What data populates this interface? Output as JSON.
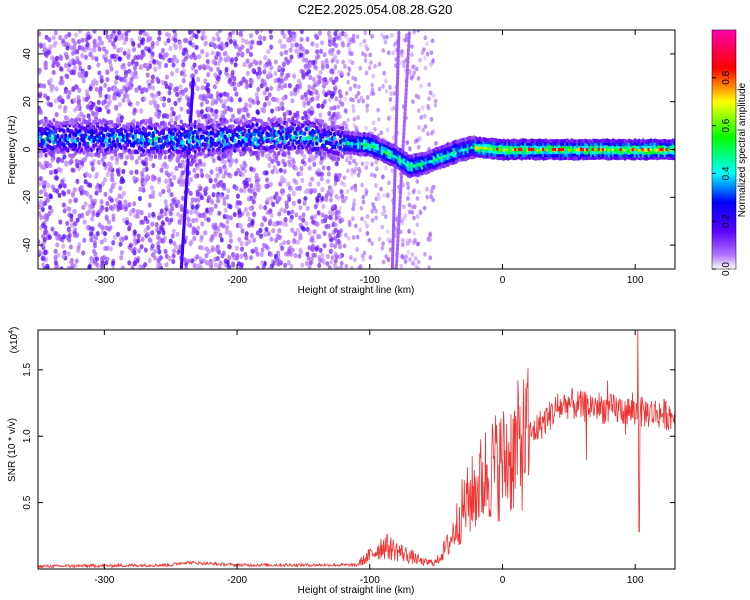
{
  "title": "C2E2.2025.054.08.28.G20",
  "chart_data": [
    {
      "type": "heatmap",
      "xlabel": "Height of straight line (km)",
      "ylabel": "Frequency (Hz)",
      "xlim": [
        -350,
        130
      ],
      "ylim": [
        -50,
        50
      ],
      "x_ticks": [
        -300,
        -200,
        -100,
        0,
        100
      ],
      "y_ticks": [
        -40,
        -20,
        0,
        20,
        40
      ],
      "colorbar": {
        "label": "Normalized spectral amplitude",
        "range": [
          0,
          1
        ],
        "ticks": [
          "0.0",
          "0.2",
          "0.4",
          "0.6",
          "0.8"
        ],
        "colors": [
          "#ffffff",
          "#9b30ff",
          "#0000ff",
          "#00ffff",
          "#00ff00",
          "#ffff00",
          "#ff0000",
          "#ff00ff"
        ]
      },
      "ridge": {
        "x": [
          -350,
          -300,
          -250,
          -200,
          -150,
          -120,
          -100,
          -80,
          -70,
          -60,
          -50,
          -40,
          -30,
          -20,
          0,
          50,
          100,
          130
        ],
        "y": [
          5,
          5,
          4,
          5,
          6,
          3,
          2,
          -3,
          -7,
          -6,
          -4,
          -2,
          0,
          1,
          0,
          0,
          0,
          0
        ]
      }
    },
    {
      "type": "line",
      "xlabel": "Height of straight line (km)",
      "ylabel": "SNR (10 * v/v)",
      "y_multiplier": "(x10",
      "y_multiplier_exp": "4",
      "y_multiplier_close": ")",
      "xlim": [
        -350,
        130
      ],
      "ylim": [
        0,
        1.8
      ],
      "x_ticks": [
        -300,
        -200,
        -100,
        0,
        100
      ],
      "y_ticks": [
        "0.5",
        "1.0",
        "1.5"
      ],
      "series": [
        {
          "color": "#ee3333",
          "x": [
            -350,
            -250,
            -240,
            -200,
            -150,
            -110,
            -100,
            -90,
            -80,
            -70,
            -60,
            -50,
            -40,
            -30,
            -20,
            -10,
            0,
            10,
            20,
            30,
            40,
            50,
            60,
            70,
            80,
            90,
            100,
            110,
            120,
            130
          ],
          "y": [
            0.02,
            0.03,
            0.05,
            0.03,
            0.03,
            0.03,
            0.1,
            0.18,
            0.14,
            0.1,
            0.05,
            0.05,
            0.2,
            0.45,
            0.6,
            0.75,
            0.8,
            0.9,
            1.0,
            1.1,
            1.2,
            1.25,
            1.22,
            1.23,
            1.2,
            1.2,
            1.18,
            1.18,
            1.17,
            1.15
          ]
        }
      ]
    }
  ]
}
